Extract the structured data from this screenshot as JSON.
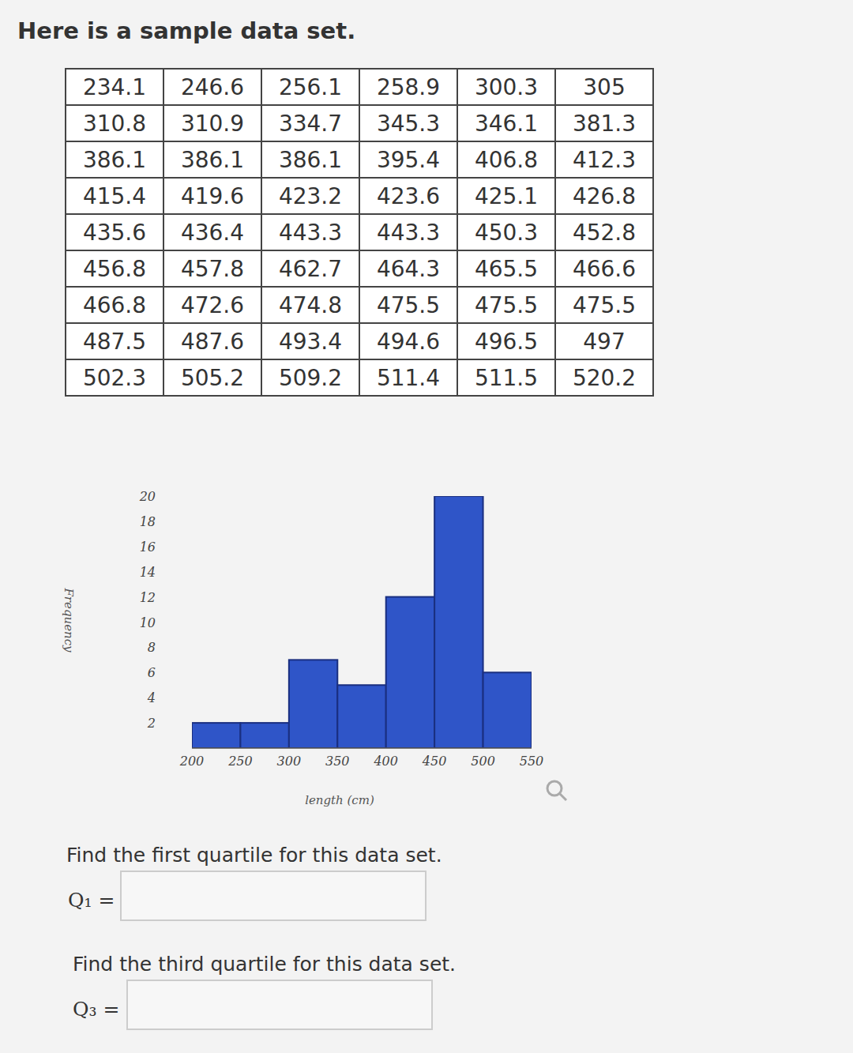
{
  "header": {
    "title": "Here is a sample data set."
  },
  "table": {
    "rows": [
      [
        "234.1",
        "246.6",
        "256.1",
        "258.9",
        "300.3",
        "305"
      ],
      [
        "310.8",
        "310.9",
        "334.7",
        "345.3",
        "346.1",
        "381.3"
      ],
      [
        "386.1",
        "386.1",
        "386.1",
        "395.4",
        "406.8",
        "412.3"
      ],
      [
        "415.4",
        "419.6",
        "423.2",
        "423.6",
        "425.1",
        "426.8"
      ],
      [
        "435.6",
        "436.4",
        "443.3",
        "443.3",
        "450.3",
        "452.8"
      ],
      [
        "456.8",
        "457.8",
        "462.7",
        "464.3",
        "465.5",
        "466.6"
      ],
      [
        "466.8",
        "472.6",
        "474.8",
        "475.5",
        "475.5",
        "475.5"
      ],
      [
        "487.5",
        "487.6",
        "493.4",
        "494.6",
        "496.5",
        "497"
      ],
      [
        "502.3",
        "505.2",
        "509.2",
        "511.4",
        "511.5",
        "520.2"
      ]
    ]
  },
  "chart_data": {
    "type": "histogram",
    "x_label": "length (cm)",
    "y_label": "Frequency",
    "bins": [
      200,
      250,
      300,
      350,
      400,
      450,
      500,
      550
    ],
    "counts": [
      2,
      2,
      7,
      5,
      12,
      20,
      6
    ],
    "color": "#2f55c8",
    "xlim": [
      200,
      550
    ],
    "xticks": [
      200,
      250,
      300,
      350,
      400,
      450,
      500,
      550
    ],
    "ylim": [
      0,
      20
    ],
    "yticks": [
      2,
      4,
      6,
      8,
      10,
      12,
      14,
      16,
      18,
      20
    ]
  },
  "questions": [
    {
      "text": "Find the first quartile for this data set.",
      "label": "Q₁ ="
    },
    {
      "text": "Find the third quartile for this data set.",
      "label": "Q₃ ="
    }
  ]
}
